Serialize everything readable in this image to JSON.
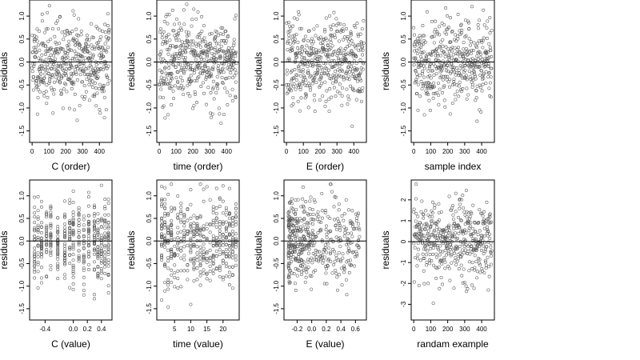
{
  "chart_data": [
    {
      "type": "scatter",
      "n": 460,
      "seed": 11,
      "xlim": [
        -15,
        475
      ],
      "ylim": [
        -1.75,
        1.35
      ],
      "xticks": [
        0,
        100,
        200,
        300,
        400
      ],
      "xticklabels": [
        "0",
        "100",
        "200",
        "300",
        "400"
      ],
      "yticks": [
        -1.5,
        -1.0,
        -0.5,
        0.0,
        0.5,
        1.0
      ],
      "yticklabels": [
        "-1.5",
        "-1.0",
        "-0.5",
        "0.0",
        "0.5",
        "1.0"
      ],
      "xlabel": "C (order)",
      "ylabel": "residuals",
      "hline": 0,
      "mode": "order",
      "sd": 0.45
    },
    {
      "type": "scatter",
      "n": 460,
      "seed": 23,
      "xlim": [
        -15,
        475
      ],
      "ylim": [
        -1.75,
        1.35
      ],
      "xticks": [
        0,
        100,
        200,
        300,
        400
      ],
      "xticklabels": [
        "0",
        "100",
        "200",
        "300",
        "400"
      ],
      "yticks": [
        -1.5,
        -1.0,
        -0.5,
        0.0,
        0.5,
        1.0
      ],
      "yticklabels": [
        "-1.5",
        "-1.0",
        "-0.5",
        "0.0",
        "0.5",
        "1.0"
      ],
      "xlabel": "time (order)",
      "ylabel": "residuals",
      "hline": 0,
      "mode": "order",
      "sd": 0.45
    },
    {
      "type": "scatter",
      "n": 460,
      "seed": 37,
      "xlim": [
        -15,
        475
      ],
      "ylim": [
        -1.75,
        1.35
      ],
      "xticks": [
        0,
        100,
        200,
        300,
        400
      ],
      "xticklabels": [
        "0",
        "100",
        "200",
        "300",
        "400"
      ],
      "yticks": [
        -1.5,
        -1.0,
        -0.5,
        0.0,
        0.5,
        1.0
      ],
      "yticklabels": [
        "-1.5",
        "-1.0",
        "-0.5",
        "0.0",
        "0.5",
        "1.0"
      ],
      "xlabel": "E (order)",
      "ylabel": "residuals",
      "hline": 0,
      "mode": "order",
      "sd": 0.45
    },
    {
      "type": "scatter",
      "n": 460,
      "seed": 41,
      "xlim": [
        -15,
        475
      ],
      "ylim": [
        -1.75,
        1.35
      ],
      "xticks": [
        0,
        100,
        200,
        300,
        400
      ],
      "xticklabels": [
        "0",
        "100",
        "200",
        "300",
        "400"
      ],
      "yticks": [
        -1.5,
        -1.0,
        -0.5,
        0.0,
        0.5,
        1.0
      ],
      "yticklabels": [
        "-1.5",
        "-1.0",
        "-0.5",
        "0.0",
        "0.5",
        "1.0"
      ],
      "xlabel": "sample index",
      "ylabel": "residuals",
      "hline": 0,
      "mode": "order",
      "sd": 0.45
    },
    {
      "type": "scatter",
      "n": 460,
      "seed": 53,
      "xlim": [
        -0.62,
        0.55
      ],
      "ylim": [
        -1.75,
        1.35
      ],
      "xticks": [
        -0.4,
        0.0,
        0.2,
        0.4
      ],
      "xticklabels": [
        "-0.4",
        "0.0",
        "0.2",
        "0.4"
      ],
      "yticks": [
        -1.5,
        -1.0,
        -0.5,
        0.0,
        0.5,
        1.0
      ],
      "yticklabels": [
        "-1.5",
        "-1.0",
        "-0.5",
        "0.0",
        "0.5",
        "1.0"
      ],
      "xlabel": "C (value)",
      "ylabel": "residuals",
      "hline": 0,
      "mode": "discrete",
      "levels": [
        -0.55,
        -0.5,
        -0.45,
        -0.38,
        -0.32,
        -0.22,
        -0.12,
        -0.05,
        0.0,
        0.08,
        0.15,
        0.22,
        0.3,
        0.35,
        0.4,
        0.45,
        0.5
      ],
      "sd": 0.45
    },
    {
      "type": "scatter",
      "n": 460,
      "seed": 67,
      "xlim": [
        -0.5,
        25
      ],
      "ylim": [
        -1.75,
        1.35
      ],
      "xticks": [
        5,
        10,
        15,
        20
      ],
      "xticklabels": [
        "5",
        "10",
        "15",
        "20"
      ],
      "yticks": [
        -1.5,
        -1.0,
        -0.5,
        0.0,
        0.5,
        1.0
      ],
      "yticklabels": [
        "-1.5",
        "-1.0",
        "-0.5",
        "0.0",
        "0.5",
        "1.0"
      ],
      "xlabel": "time (value)",
      "ylabel": "residuals",
      "hline": 0,
      "mode": "discrete",
      "levels": [
        1,
        2,
        3,
        4,
        5,
        6,
        7,
        8,
        9,
        10,
        11,
        12,
        13,
        14,
        15,
        16,
        17,
        18,
        19,
        20,
        21,
        22,
        23,
        24
      ],
      "sd": 0.45
    },
    {
      "type": "scatter",
      "n": 460,
      "seed": 79,
      "xlim": [
        -0.38,
        0.75
      ],
      "ylim": [
        -1.75,
        1.35
      ],
      "xticks": [
        -0.2,
        0.0,
        0.2,
        0.4,
        0.6
      ],
      "xticklabels": [
        "-0.2",
        "0.0",
        "0.2",
        "0.4",
        "0.6"
      ],
      "yticks": [
        -1.5,
        -1.0,
        -0.5,
        0.0,
        0.5,
        1.0
      ],
      "yticklabels": [
        "-1.5",
        "-1.0",
        "-0.5",
        "0.0",
        "0.5",
        "1.0"
      ],
      "xlabel": "E (value)",
      "ylabel": "residuals",
      "hline": 0,
      "mode": "skewed",
      "sd": 0.45
    },
    {
      "type": "scatter",
      "n": 460,
      "seed": 97,
      "xlim": [
        -15,
        475
      ],
      "ylim": [
        -3.75,
        2.95
      ],
      "xticks": [
        0,
        100,
        200,
        300,
        400
      ],
      "xticklabels": [
        "0",
        "100",
        "200",
        "300",
        "400"
      ],
      "yticks": [
        -3,
        -2,
        -1,
        0,
        1,
        2
      ],
      "yticklabels": [
        "-3",
        "-2",
        "-1",
        "0",
        "1",
        "2"
      ],
      "xlabel": "randam example",
      "ylabel": "residuals",
      "hline": 0,
      "mode": "order",
      "sd": 1.0
    }
  ]
}
